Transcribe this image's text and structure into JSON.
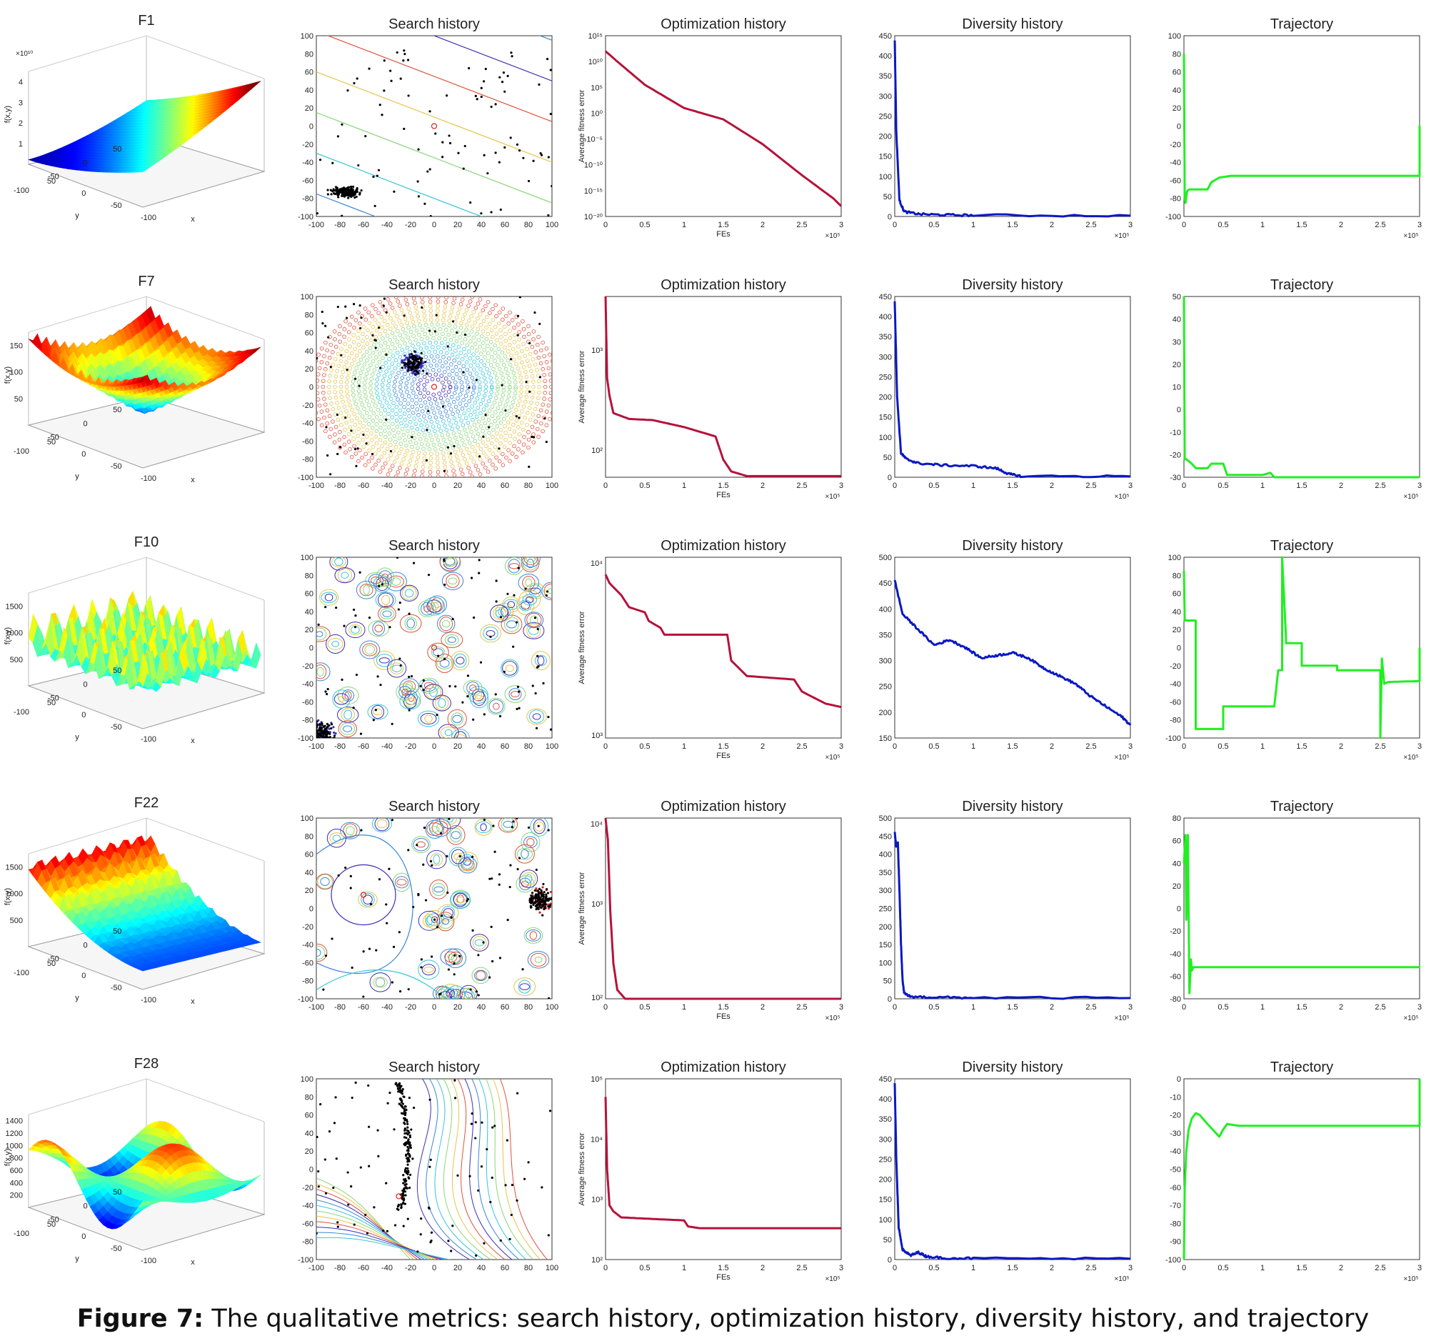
{
  "figure": {
    "caption_label": "Figure 7:",
    "caption_text": "The qualitative metrics: search history, optimization history, diversity history, and trajectory"
  },
  "colors": {
    "optimization": "#b5123a",
    "diversity": "#0a18c2",
    "trajectory": "#22ee22",
    "contour": [
      "#3b2fb5",
      "#3a86d6",
      "#37c6d8",
      "#8ad57a",
      "#e6c44a",
      "#e0503a"
    ]
  },
  "chart_data": [
    {
      "type": "surface",
      "title": "F1",
      "zlabel": "f(x,y)",
      "xlabel": "x",
      "ylabel": "y",
      "x_ticks": [
        "-100",
        "-50",
        "0",
        "50"
      ],
      "y_ticks": [
        "50",
        "0",
        "-50",
        "-100"
      ],
      "z_ticks": [
        "1",
        "2",
        "3",
        "4"
      ],
      "z_exponent": "×10¹⁰",
      "surface": "bowl"
    },
    {
      "type": "scatter",
      "title": "Search history",
      "xlim": [
        -100,
        100
      ],
      "ylim": [
        -100,
        100
      ],
      "ticks": [
        "-100",
        "-80",
        "-60",
        "-40",
        "-20",
        "0",
        "20",
        "40",
        "60",
        "80",
        "100"
      ],
      "contour_style": "lines",
      "cluster": {
        "x": -75,
        "y": -73
      },
      "best": {
        "x": 0,
        "y": 0
      }
    },
    {
      "type": "line",
      "title": "Optimization history",
      "scale": "log",
      "xlabel": "FEs",
      "ylabel": "Average fitness error",
      "xlim": [
        0,
        300000
      ],
      "x_ticks": [
        "0",
        "0.5",
        "1",
        "1.5",
        "2",
        "2.5",
        "3"
      ],
      "x_exponent": "×10⁵",
      "y_ticks": [
        "10¹⁵",
        "10¹⁰",
        "10⁵",
        "10⁰",
        "10⁻⁵",
        "10⁻¹⁰",
        "10⁻¹⁵",
        "10⁻²⁰"
      ],
      "ylim": [
        -20,
        15
      ],
      "x": [
        0,
        0.15,
        0.5,
        1,
        1.5,
        2,
        2.5,
        2.9,
        3
      ],
      "y": [
        12,
        10,
        5.5,
        1,
        -1.2,
        -6,
        -12,
        -16.5,
        -18
      ]
    },
    {
      "type": "line",
      "title": "Diversity history",
      "xlim": [
        0,
        300000
      ],
      "ylim": [
        0,
        450
      ],
      "x_ticks": [
        "0",
        "0.5",
        "1",
        "1.5",
        "2",
        "2.5",
        "3"
      ],
      "x_exponent": "×10⁵",
      "y_ticks": [
        "0",
        "50",
        "100",
        "150",
        "200",
        "250",
        "300",
        "350",
        "400",
        "450"
      ],
      "x": [
        0,
        0.02,
        0.06,
        0.12,
        0.3,
        0.6,
        1,
        3
      ],
      "y": [
        440,
        210,
        40,
        12,
        6,
        4,
        3,
        2
      ]
    },
    {
      "type": "line",
      "title": "Trajectory",
      "xlim": [
        0,
        300000
      ],
      "ylim": [
        -100,
        100
      ],
      "x_ticks": [
        "0",
        "0.5",
        "1",
        "1.5",
        "2",
        "2.5",
        "3"
      ],
      "x_exponent": "×10⁵",
      "y_ticks": [
        "-100",
        "-80",
        "-60",
        "-40",
        "-20",
        "0",
        "20",
        "40",
        "60",
        "80",
        "100"
      ],
      "x": [
        0,
        0.01,
        0.02,
        0.04,
        0.07,
        0.3,
        0.35,
        0.45,
        0.6,
        3,
        3,
        3
      ],
      "y": [
        80,
        -80,
        -85,
        -72,
        -70,
        -70,
        -62,
        -57,
        -55,
        -55,
        0,
        -55
      ]
    },
    {
      "type": "surface",
      "title": "F7",
      "zlabel": "f(x,y)",
      "xlabel": "x",
      "ylabel": "y",
      "x_ticks": [
        "-100",
        "-50",
        "0",
        "50"
      ],
      "y_ticks": [
        "50",
        "0",
        "-50",
        "-100"
      ],
      "z_ticks": [
        "50",
        "100",
        "150"
      ],
      "z_exponent": "",
      "surface": "rugged-bowl"
    },
    {
      "type": "scatter",
      "title": "Search history",
      "xlim": [
        -100,
        100
      ],
      "ylim": [
        -100,
        100
      ],
      "ticks": [
        "-100",
        "-80",
        "-60",
        "-40",
        "-20",
        "0",
        "20",
        "40",
        "60",
        "80",
        "100"
      ],
      "contour_style": "rings",
      "cluster": {
        "x": -18,
        "y": 25
      },
      "best": {
        "x": 0,
        "y": 0
      }
    },
    {
      "type": "line",
      "title": "Optimization history",
      "scale": "log",
      "xlabel": "FEs",
      "ylabel": "Average fitness error",
      "xlim": [
        0,
        300000
      ],
      "x_ticks": [
        "0",
        "0.5",
        "1",
        "1.5",
        "2",
        "2.5",
        "3"
      ],
      "x_exponent": "×10⁵",
      "y_ticks": [
        "10³",
        "10²"
      ],
      "ylim": [
        1.75,
        3.3
      ],
      "x": [
        0,
        0.02,
        0.05,
        0.1,
        0.3,
        0.6,
        1,
        1.4,
        1.5,
        1.6,
        1.8,
        3
      ],
      "y": [
        3.3,
        2.6,
        2.45,
        2.3,
        2.25,
        2.24,
        2.18,
        2.1,
        1.9,
        1.8,
        1.76,
        1.76
      ]
    },
    {
      "type": "line",
      "title": "Diversity history",
      "xlim": [
        0,
        300000
      ],
      "ylim": [
        0,
        450
      ],
      "x_ticks": [
        "0",
        "0.5",
        "1",
        "1.5",
        "2",
        "2.5",
        "3"
      ],
      "x_exponent": "×10⁵",
      "y_ticks": [
        "0",
        "50",
        "100",
        "150",
        "200",
        "250",
        "300",
        "350",
        "400",
        "450"
      ],
      "x": [
        0,
        0.03,
        0.08,
        0.15,
        0.3,
        0.6,
        1,
        1.3,
        1.45,
        1.6,
        3
      ],
      "y": [
        440,
        200,
        60,
        45,
        35,
        30,
        28,
        22,
        8,
        3,
        2
      ]
    },
    {
      "type": "line",
      "title": "Trajectory",
      "xlim": [
        0,
        300000
      ],
      "ylim": [
        -30,
        50
      ],
      "x_ticks": [
        "0",
        "0.5",
        "1",
        "1.5",
        "2",
        "2.5",
        "3"
      ],
      "x_exponent": "×10⁵",
      "y_ticks": [
        "-30",
        "-20",
        "-10",
        "0",
        "10",
        "20",
        "30",
        "40",
        "50"
      ],
      "x": [
        0,
        0.01,
        0.03,
        0.1,
        0.15,
        0.3,
        0.35,
        0.5,
        0.55,
        1.0,
        1.1,
        1.15,
        3
      ],
      "y": [
        50,
        -22,
        -22,
        -24,
        -26,
        -26,
        -24,
        -24,
        -29,
        -29,
        -28,
        -30,
        -30
      ]
    },
    {
      "type": "surface",
      "title": "F10",
      "zlabel": "f(x,y)",
      "xlabel": "x",
      "ylabel": "y",
      "x_ticks": [
        "-100",
        "-50",
        "0",
        "50"
      ],
      "y_ticks": [
        "50",
        "0",
        "-50",
        "-100"
      ],
      "z_ticks": [
        "500",
        "1000",
        "1500"
      ],
      "z_exponent": "",
      "surface": "spiky"
    },
    {
      "type": "scatter",
      "title": "Search history",
      "xlim": [
        -100,
        100
      ],
      "ylim": [
        -100,
        100
      ],
      "ticks": [
        "-100",
        "-80",
        "-60",
        "-40",
        "-20",
        "0",
        "20",
        "40",
        "60",
        "80",
        "100"
      ],
      "contour_style": "blobs",
      "cluster": {
        "x": -95,
        "y": -95
      },
      "best": {
        "x": 0,
        "y": 0
      }
    },
    {
      "type": "line",
      "title": "Optimization history",
      "scale": "log",
      "xlabel": "FEs",
      "ylabel": "Average fitness error",
      "xlim": [
        0,
        300000
      ],
      "x_ticks": [
        "0",
        "0.5",
        "1",
        "1.5",
        "2",
        "2.5",
        "3"
      ],
      "x_exponent": "×10⁵",
      "y_ticks": [
        "10⁴",
        "10³"
      ],
      "ylim": [
        3,
        4.05
      ],
      "x": [
        0,
        0.05,
        0.2,
        0.3,
        0.5,
        0.55,
        0.7,
        0.75,
        0.9,
        1.55,
        1.6,
        1.8,
        2.4,
        2.5,
        2.8,
        3
      ],
      "y": [
        3.95,
        3.9,
        3.83,
        3.76,
        3.73,
        3.68,
        3.64,
        3.6,
        3.6,
        3.6,
        3.45,
        3.36,
        3.34,
        3.27,
        3.2,
        3.18
      ]
    },
    {
      "type": "line",
      "title": "Diversity history",
      "xlim": [
        0,
        300000
      ],
      "ylim": [
        150,
        500
      ],
      "x_ticks": [
        "0",
        "0.5",
        "1",
        "1.5",
        "2",
        "2.5",
        "3"
      ],
      "x_exponent": "×10⁵",
      "y_ticks": [
        "150",
        "200",
        "250",
        "300",
        "350",
        "400",
        "450",
        "500"
      ],
      "x": [
        0,
        0.1,
        0.3,
        0.5,
        0.7,
        0.9,
        1.1,
        1.3,
        1.5,
        1.7,
        1.9,
        2.1,
        2.3,
        2.5,
        2.7,
        2.9,
        3
      ],
      "y": [
        455,
        390,
        360,
        330,
        340,
        325,
        305,
        310,
        315,
        305,
        285,
        270,
        255,
        230,
        210,
        190,
        175
      ]
    },
    {
      "type": "line",
      "title": "Trajectory",
      "xlim": [
        0,
        300000
      ],
      "ylim": [
        -100,
        100
      ],
      "x_ticks": [
        "0",
        "0.5",
        "1",
        "1.5",
        "2",
        "2.5",
        "3"
      ],
      "x_exponent": "×10⁵",
      "y_ticks": [
        "-100",
        "-80",
        "-60",
        "-40",
        "-20",
        "0",
        "20",
        "40",
        "60",
        "80",
        "100"
      ],
      "x": [
        0,
        0.01,
        0.15,
        0.15,
        0.5,
        0.5,
        1.15,
        1.2,
        1.25,
        1.25,
        1.3,
        1.3,
        1.5,
        1.5,
        1.95,
        1.95,
        2.5,
        2.5,
        2.52,
        2.55,
        2.6,
        3,
        3
      ],
      "y": [
        85,
        30,
        30,
        -90,
        -90,
        -65,
        -65,
        -25,
        -25,
        100,
        10,
        5,
        5,
        -20,
        -20,
        -25,
        -25,
        -100,
        -12,
        -40,
        -38,
        -37,
        0
      ]
    },
    {
      "type": "surface",
      "title": "F22",
      "zlabel": "f(x,y)",
      "xlabel": "x",
      "ylabel": "y",
      "x_ticks": [
        "-100",
        "-50",
        "0",
        "50"
      ],
      "y_ticks": [
        "50",
        "0",
        "-50",
        "-100"
      ],
      "z_ticks": [
        "500",
        "1000",
        "1500"
      ],
      "z_exponent": "",
      "surface": "slope"
    },
    {
      "type": "scatter",
      "title": "Search history",
      "xlim": [
        -100,
        100
      ],
      "ylim": [
        -100,
        100
      ],
      "ticks": [
        "-100",
        "-80",
        "-60",
        "-40",
        "-20",
        "0",
        "20",
        "40",
        "60",
        "80",
        "100"
      ],
      "contour_style": "mixed",
      "cluster": {
        "x": 90,
        "y": 10
      },
      "best": {
        "x": -60,
        "y": 15
      }
    },
    {
      "type": "line",
      "title": "Optimization history",
      "scale": "log",
      "xlabel": "FEs",
      "ylabel": "Average fitness error",
      "xlim": [
        0,
        300000
      ],
      "x_ticks": [
        "0",
        "0.5",
        "1",
        "1.5",
        "2",
        "2.5",
        "3"
      ],
      "x_exponent": "×10⁵",
      "y_ticks": [
        "10⁴",
        "10³",
        "10²"
      ],
      "ylim": [
        2,
        4.05
      ],
      "x": [
        0,
        0.03,
        0.06,
        0.1,
        0.15,
        0.25,
        3
      ],
      "y": [
        4.05,
        3.8,
        3.0,
        2.4,
        2.1,
        2.0,
        2.0
      ]
    },
    {
      "type": "line",
      "title": "Diversity history",
      "xlim": [
        0,
        300000
      ],
      "ylim": [
        0,
        500
      ],
      "x_ticks": [
        "0",
        "0.5",
        "1",
        "1.5",
        "2",
        "2.5",
        "3"
      ],
      "x_exponent": "×10⁵",
      "y_ticks": [
        "0",
        "50",
        "100",
        "150",
        "200",
        "250",
        "300",
        "350",
        "400",
        "450",
        "500"
      ],
      "x": [
        0,
        0.02,
        0.04,
        0.06,
        0.08,
        0.1,
        0.12,
        0.2,
        0.5,
        1,
        3
      ],
      "y": [
        460,
        420,
        430,
        300,
        150,
        50,
        15,
        6,
        4,
        3,
        2
      ]
    },
    {
      "type": "line",
      "title": "Trajectory",
      "xlim": [
        0,
        300000
      ],
      "ylim": [
        -80,
        80
      ],
      "x_ticks": [
        "0",
        "0.5",
        "1",
        "1.5",
        "2",
        "2.5",
        "3"
      ],
      "x_exponent": "×10⁵",
      "y_ticks": [
        "-80",
        "-60",
        "-40",
        "-20",
        "0",
        "20",
        "40",
        "60",
        "80"
      ],
      "x": [
        0,
        0.02,
        0.03,
        0.05,
        0.07,
        0.09,
        0.1,
        0.12,
        3
      ],
      "y": [
        40,
        65,
        -10,
        65,
        -75,
        -45,
        -55,
        -52,
        -52
      ]
    },
    {
      "type": "surface",
      "title": "F28",
      "zlabel": "f(x,y)",
      "xlabel": "x",
      "ylabel": "y",
      "x_ticks": [
        "-100",
        "-50",
        "0",
        "50"
      ],
      "y_ticks": [
        "50",
        "0",
        "-50",
        "-100"
      ],
      "z_ticks": [
        "200",
        "400",
        "600",
        "800",
        "1000",
        "1200",
        "1400"
      ],
      "z_exponent": "",
      "surface": "waves"
    },
    {
      "type": "scatter",
      "title": "Search history",
      "xlim": [
        -100,
        100
      ],
      "ylim": [
        -100,
        100
      ],
      "ticks": [
        "-100",
        "-80",
        "-60",
        "-40",
        "-20",
        "0",
        "20",
        "40",
        "60",
        "80",
        "100"
      ],
      "contour_style": "waves",
      "cluster": {
        "x": -30,
        "y": 80
      },
      "best": {
        "x": -30,
        "y": -30
      }
    },
    {
      "type": "line",
      "title": "Optimization history",
      "scale": "log",
      "xlabel": "FEs",
      "ylabel": "Average fitness error",
      "xlim": [
        0,
        300000
      ],
      "x_ticks": [
        "0",
        "0.5",
        "1",
        "1.5",
        "2",
        "2.5",
        "3"
      ],
      "x_exponent": "×10⁵",
      "y_ticks": [
        "10⁵",
        "10⁴",
        "10³",
        "10²"
      ],
      "ylim": [
        2,
        5
      ],
      "x": [
        0,
        0.02,
        0.05,
        0.1,
        0.2,
        0.5,
        1,
        1.05,
        1.2,
        3
      ],
      "y": [
        4.7,
        3.5,
        2.9,
        2.8,
        2.7,
        2.68,
        2.65,
        2.55,
        2.52,
        2.52
      ]
    },
    {
      "type": "line",
      "title": "Diversity history",
      "xlim": [
        0,
        300000
      ],
      "ylim": [
        0,
        450
      ],
      "x_ticks": [
        "0",
        "0.5",
        "1",
        "1.5",
        "2",
        "2.5",
        "3"
      ],
      "x_exponent": "×10⁵",
      "y_ticks": [
        "0",
        "50",
        "100",
        "150",
        "200",
        "250",
        "300",
        "350",
        "400",
        "450"
      ],
      "x": [
        0,
        0.02,
        0.05,
        0.1,
        0.2,
        0.3,
        0.4,
        0.6,
        1,
        3
      ],
      "y": [
        440,
        250,
        80,
        25,
        10,
        18,
        8,
        4,
        3,
        2
      ]
    },
    {
      "type": "line",
      "title": "Trajectory",
      "xlim": [
        0,
        300000
      ],
      "ylim": [
        -100,
        0
      ],
      "x_ticks": [
        "0",
        "0.5",
        "1",
        "1.5",
        "2",
        "2.5",
        "3"
      ],
      "x_exponent": "×10⁵",
      "y_ticks": [
        "-100",
        "-90",
        "-80",
        "-70",
        "-60",
        "-50",
        "-40",
        "-30",
        "-20",
        "-10",
        "0"
      ],
      "x": [
        0,
        0.01,
        0.03,
        0.06,
        0.1,
        0.15,
        0.2,
        0.3,
        0.45,
        0.5,
        0.55,
        0.7,
        3,
        3
      ],
      "y": [
        -100,
        -60,
        -40,
        -28,
        -22,
        -19,
        -20,
        -25,
        -32,
        -28,
        -25,
        -26,
        -26,
        0
      ]
    }
  ]
}
